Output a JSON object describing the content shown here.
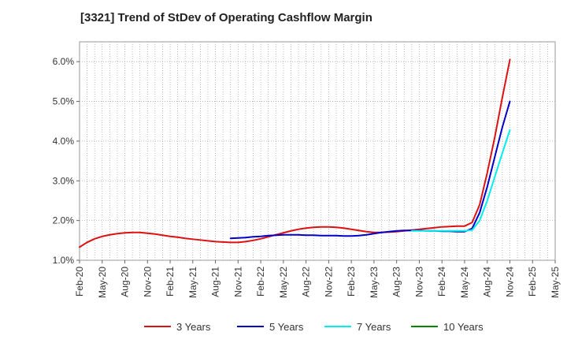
{
  "chart_data": {
    "type": "line",
    "title": "[3321]  Trend of StDev of Operating Cashflow Margin",
    "xlabel": "",
    "ylabel": "",
    "x_ticks": [
      "Feb-20",
      "May-20",
      "Aug-20",
      "Nov-20",
      "Feb-21",
      "May-21",
      "Aug-21",
      "Nov-21",
      "Feb-22",
      "May-22",
      "Aug-22",
      "Nov-22",
      "Feb-23",
      "May-23",
      "Aug-23",
      "Nov-23",
      "Feb-24",
      "May-24",
      "Aug-24",
      "Nov-24",
      "Feb-25",
      "May-25"
    ],
    "y_ticks": [
      "1.0%",
      "2.0%",
      "3.0%",
      "4.0%",
      "5.0%",
      "6.0%"
    ],
    "ylim": [
      1.0,
      6.5
    ],
    "grid": true,
    "legend_position": "bottom",
    "series": [
      {
        "name": "3 Years",
        "color": "#dd1111",
        "points": [
          [
            "Feb-20",
            1.33
          ],
          [
            "Mar-20",
            1.45
          ],
          [
            "Apr-20",
            1.54
          ],
          [
            "May-20",
            1.6
          ],
          [
            "Jun-20",
            1.64
          ],
          [
            "Jul-20",
            1.67
          ],
          [
            "Aug-20",
            1.69
          ],
          [
            "Sep-20",
            1.7
          ],
          [
            "Oct-20",
            1.7
          ],
          [
            "Nov-20",
            1.68
          ],
          [
            "Dec-20",
            1.66
          ],
          [
            "Jan-21",
            1.63
          ],
          [
            "Feb-21",
            1.6
          ],
          [
            "Mar-21",
            1.58
          ],
          [
            "Apr-21",
            1.55
          ],
          [
            "May-21",
            1.53
          ],
          [
            "Jun-21",
            1.51
          ],
          [
            "Jul-21",
            1.49
          ],
          [
            "Aug-21",
            1.47
          ],
          [
            "Sep-21",
            1.46
          ],
          [
            "Oct-21",
            1.45
          ],
          [
            "Nov-21",
            1.45
          ],
          [
            "Dec-21",
            1.47
          ],
          [
            "Jan-22",
            1.5
          ],
          [
            "Feb-22",
            1.54
          ],
          [
            "Mar-22",
            1.59
          ],
          [
            "Apr-22",
            1.64
          ],
          [
            "May-22",
            1.69
          ],
          [
            "Jun-22",
            1.74
          ],
          [
            "Jul-22",
            1.78
          ],
          [
            "Aug-22",
            1.81
          ],
          [
            "Sep-22",
            1.83
          ],
          [
            "Oct-22",
            1.84
          ],
          [
            "Nov-22",
            1.84
          ],
          [
            "Dec-22",
            1.83
          ],
          [
            "Jan-23",
            1.81
          ],
          [
            "Feb-23",
            1.78
          ],
          [
            "Mar-23",
            1.75
          ],
          [
            "Apr-23",
            1.72
          ],
          [
            "May-23",
            1.7
          ],
          [
            "Jun-23",
            1.7
          ],
          [
            "Jul-23",
            1.71
          ],
          [
            "Aug-23",
            1.72
          ],
          [
            "Sep-23",
            1.74
          ],
          [
            "Oct-23",
            1.76
          ],
          [
            "Nov-23",
            1.78
          ],
          [
            "Dec-23",
            1.8
          ],
          [
            "Jan-24",
            1.82
          ],
          [
            "Feb-24",
            1.84
          ],
          [
            "Mar-24",
            1.85
          ],
          [
            "Apr-24",
            1.86
          ],
          [
            "May-24",
            1.86
          ],
          [
            "Jun-24",
            1.95
          ],
          [
            "Jul-24",
            2.4
          ],
          [
            "Aug-24",
            3.2
          ],
          [
            "Sep-24",
            4.1
          ],
          [
            "Oct-24",
            5.1
          ],
          [
            "Nov-24",
            6.05
          ]
        ]
      },
      {
        "name": "5 Years",
        "color": "#0000cc",
        "points": [
          [
            "Oct-21",
            1.55
          ],
          [
            "Nov-21",
            1.56
          ],
          [
            "Dec-21",
            1.57
          ],
          [
            "Jan-22",
            1.59
          ],
          [
            "Feb-22",
            1.6
          ],
          [
            "Mar-22",
            1.62
          ],
          [
            "Apr-22",
            1.63
          ],
          [
            "May-22",
            1.64
          ],
          [
            "Jun-22",
            1.64
          ],
          [
            "Jul-22",
            1.64
          ],
          [
            "Aug-22",
            1.63
          ],
          [
            "Sep-22",
            1.63
          ],
          [
            "Oct-22",
            1.62
          ],
          [
            "Nov-22",
            1.62
          ],
          [
            "Dec-22",
            1.62
          ],
          [
            "Jan-23",
            1.61
          ],
          [
            "Feb-23",
            1.61
          ],
          [
            "Mar-23",
            1.62
          ],
          [
            "Apr-23",
            1.64
          ],
          [
            "May-23",
            1.67
          ],
          [
            "Jun-23",
            1.7
          ],
          [
            "Jul-23",
            1.72
          ],
          [
            "Aug-23",
            1.74
          ],
          [
            "Sep-23",
            1.75
          ],
          [
            "Oct-23",
            1.75
          ],
          [
            "Nov-23",
            1.75
          ],
          [
            "Dec-23",
            1.74
          ],
          [
            "Jan-24",
            1.74
          ],
          [
            "Feb-24",
            1.73
          ],
          [
            "Mar-24",
            1.73
          ],
          [
            "Apr-24",
            1.72
          ],
          [
            "May-24",
            1.72
          ],
          [
            "Jun-24",
            1.8
          ],
          [
            "Jul-24",
            2.2
          ],
          [
            "Aug-24",
            2.85
          ],
          [
            "Sep-24",
            3.6
          ],
          [
            "Oct-24",
            4.35
          ],
          [
            "Nov-24",
            5.0
          ]
        ]
      },
      {
        "name": "7 Years",
        "color": "#00eeee",
        "points": [
          [
            "Oct-23",
            1.74
          ],
          [
            "Nov-23",
            1.74
          ],
          [
            "Dec-23",
            1.74
          ],
          [
            "Jan-24",
            1.74
          ],
          [
            "Feb-24",
            1.74
          ],
          [
            "Mar-24",
            1.74
          ],
          [
            "Apr-24",
            1.74
          ],
          [
            "May-24",
            1.74
          ],
          [
            "Jun-24",
            1.76
          ],
          [
            "Jul-24",
            2.0
          ],
          [
            "Aug-24",
            2.5
          ],
          [
            "Sep-24",
            3.1
          ],
          [
            "Oct-24",
            3.7
          ],
          [
            "Nov-24",
            4.28
          ]
        ]
      },
      {
        "name": "10 Years",
        "color": "#008800",
        "points": []
      }
    ]
  }
}
